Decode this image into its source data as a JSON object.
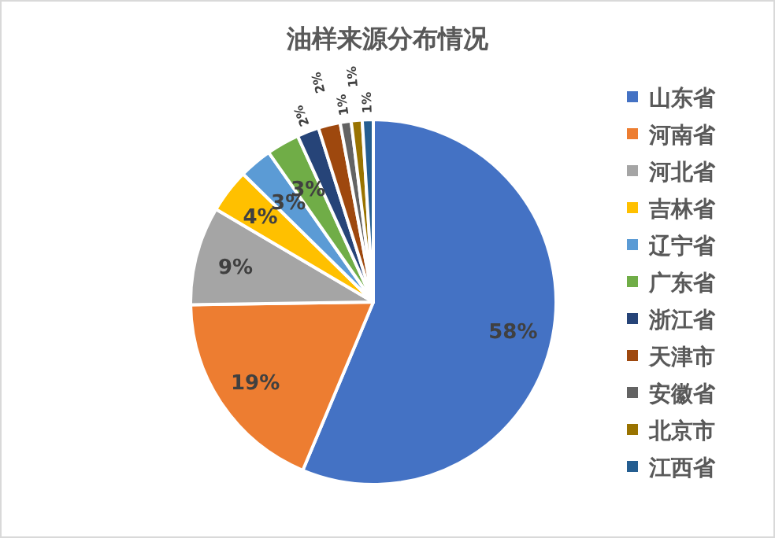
{
  "chart_data": {
    "type": "pie",
    "title": "油样来源分布情况",
    "legend": "right",
    "categories": [
      "山东省",
      "河南省",
      "河北省",
      "吉林省",
      "辽宁省",
      "广东省",
      "浙江省",
      "天津市",
      "安徽省",
      "北京市",
      "江西省"
    ],
    "values": [
      58,
      19,
      9,
      4,
      3,
      3,
      2,
      2,
      1,
      1,
      1
    ],
    "value_labels": [
      "58%",
      "19%",
      "9%",
      "4%",
      "3%",
      "3%",
      "2%",
      "2%",
      "1%",
      "1%",
      "1%"
    ],
    "colors": [
      "#4472c4",
      "#ed7d31",
      "#a5a5a5",
      "#ffc000",
      "#5b9bd5",
      "#70ad47",
      "#264478",
      "#9e480e",
      "#636363",
      "#997300",
      "#255e91"
    ]
  }
}
